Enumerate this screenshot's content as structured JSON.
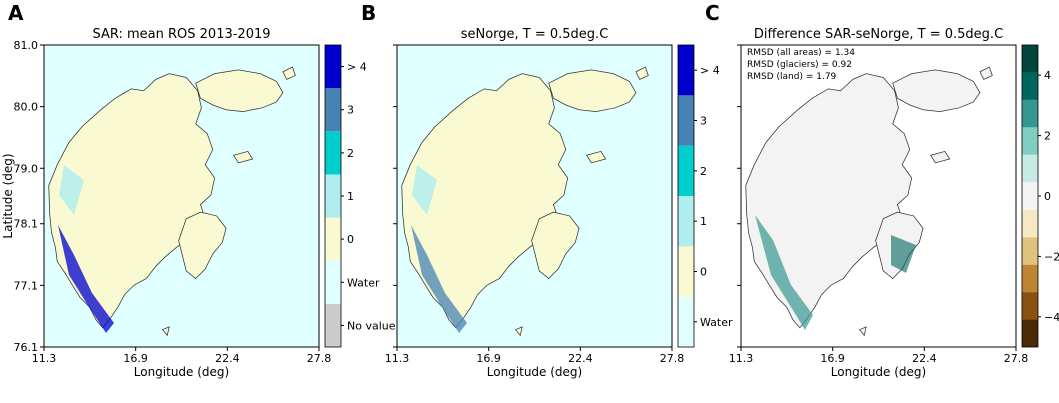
{
  "colors": {
    "water": "#e0ffff",
    "land": "#fafad2",
    "glacier_low": "#aeeeee",
    "ros_cbar": [
      "#cccccc",
      "#e0ffff",
      "#fafad2",
      "#aeeeee",
      "#00cdcd",
      "#4682b4",
      "#0000cd"
    ],
    "diff_cbar": [
      "#4a2a04",
      "#8a5210",
      "#bf8534",
      "#dfc27d",
      "#f6e8c3",
      "#f3f3f3",
      "#c7eae5",
      "#80cdc1",
      "#35978f",
      "#01665e",
      "#00463c"
    ]
  },
  "panels": [
    {
      "letter": "A",
      "title": "SAR: mean ROS 2013-2019",
      "xlabel": "Longitude (deg)",
      "ylabel": "Latitude (deg)",
      "cbar_labels": [
        "> 4",
        "3",
        "2",
        "1",
        "0",
        "Water",
        "No value"
      ]
    },
    {
      "letter": "B",
      "title": "seNorge, T = 0.5deg.C",
      "xlabel": "Longitude (deg)",
      "cbar_labels": [
        "> 4",
        "3",
        "2",
        "1",
        "0",
        "Water"
      ]
    },
    {
      "letter": "C",
      "title": "Difference SAR-seNorge, T = 0.5deg.C",
      "xlabel": "Longitude (deg)",
      "stats": [
        "RMSD (all areas) = 1.34",
        "RMSD (glaciers) = 0.92",
        "RMSD (land) = 1.79"
      ],
      "cbar_ticks": [
        "4",
        "2",
        "0",
        "−2",
        "−4"
      ]
    }
  ],
  "chart_data": {
    "type": "heatmap",
    "x_ticks": [
      "11.3",
      "16.9",
      "22.4",
      "27.8"
    ],
    "y_ticks": [
      "81.0",
      "80.0",
      "79.0",
      "78.1",
      "77.1",
      "76.1"
    ],
    "xlim": [
      11.3,
      27.8
    ],
    "ylim": [
      76.1,
      81.0
    ],
    "rmsd": {
      "all_areas": 1.34,
      "glaciers": 0.92,
      "land": 1.79
    },
    "ros_classes": [
      "No value",
      "Water",
      "0",
      "1",
      "2",
      "3",
      "> 4"
    ],
    "diff_range": [
      -5,
      5
    ]
  }
}
